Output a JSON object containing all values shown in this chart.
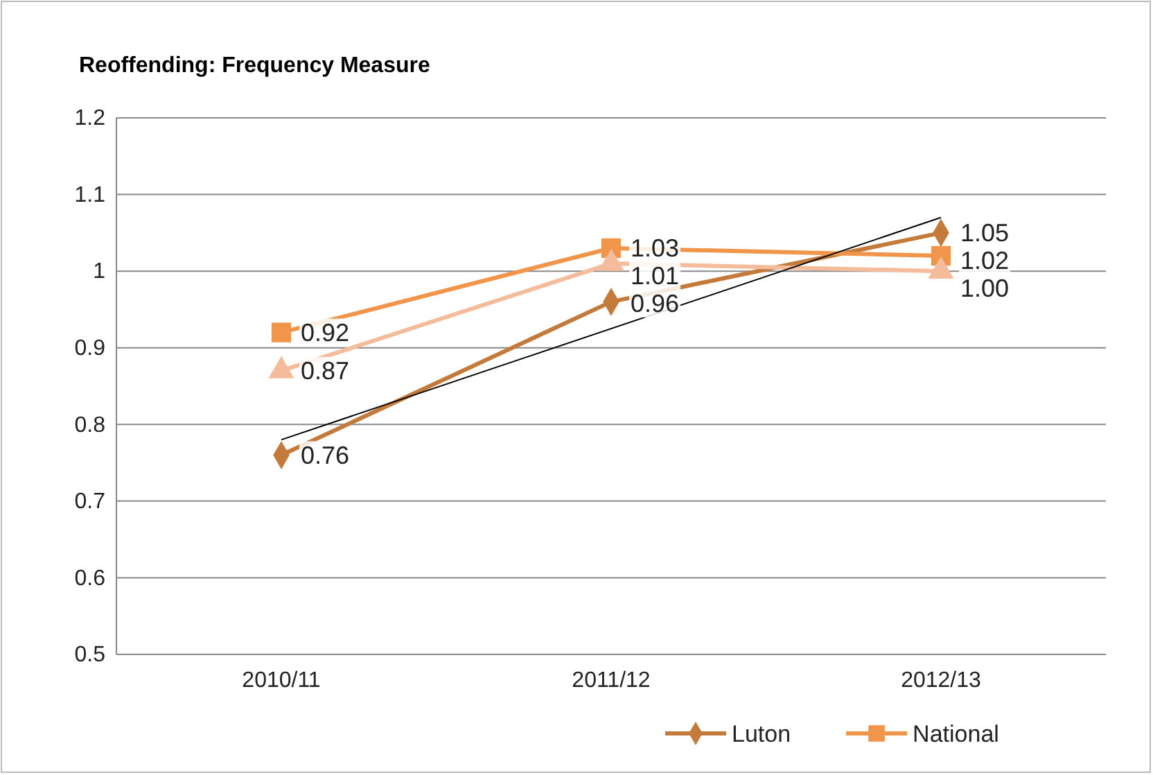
{
  "chart_data": {
    "type": "line",
    "title": "Reoffending: Frequency Measure",
    "categories": [
      "2010/11",
      "2011/12",
      "2012/13"
    ],
    "series": [
      {
        "name": "Luton",
        "color": "#c47a3a",
        "marker": "diamond",
        "values": [
          0.76,
          0.96,
          1.05
        ],
        "value_labels": [
          "0.76",
          "0.96",
          "1.05"
        ]
      },
      {
        "name": "National",
        "color": "#f0954a",
        "marker": "square",
        "values": [
          0.92,
          1.03,
          1.02
        ],
        "value_labels": [
          "0.92",
          "1.03",
          "1.02"
        ]
      },
      {
        "color": "#f5bc9c",
        "marker": "triangle",
        "values": [
          0.87,
          1.01,
          1.0
        ],
        "value_labels": [
          "0.87",
          "1.01",
          "1.00"
        ]
      },
      {
        "type": "line",
        "color": "#000000",
        "marker": "none",
        "x": [
          "2010/11",
          "2012/13"
        ],
        "values": [
          0.78,
          1.07
        ]
      }
    ],
    "ylim": [
      0.5,
      1.2
    ],
    "yticks": [
      0.5,
      0.6,
      0.7,
      0.8,
      0.9,
      1,
      1.1,
      1.2
    ],
    "grid": "y",
    "legend": "bottom right"
  }
}
